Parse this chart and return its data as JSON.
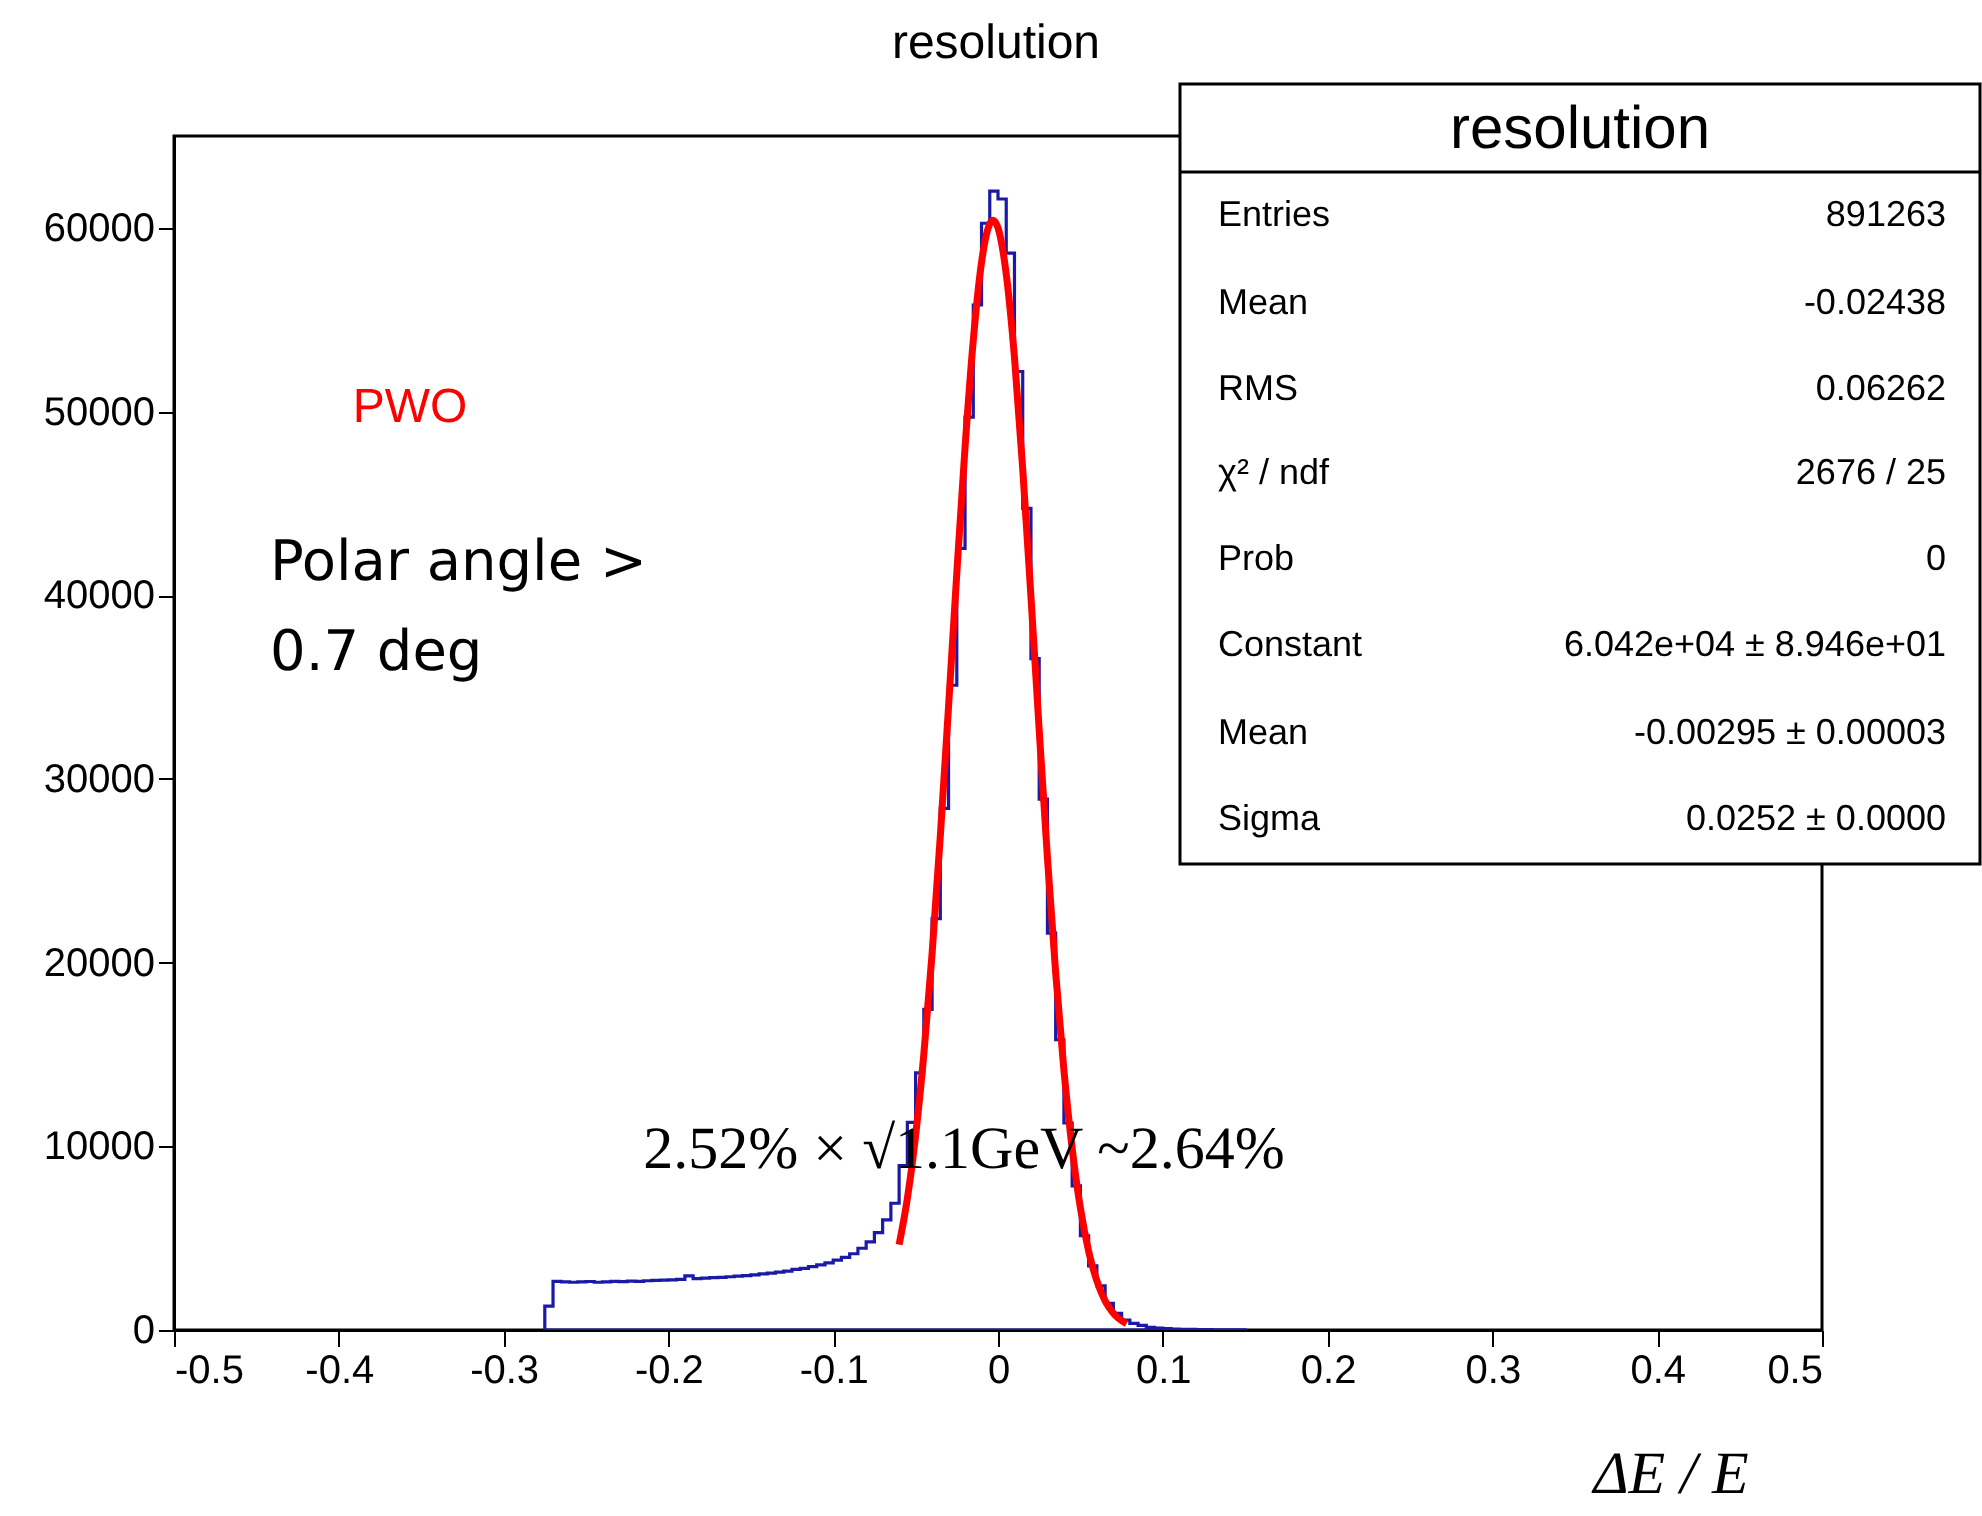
{
  "chart_data": {
    "type": "histogram",
    "title": "resolution",
    "xlabel": "ΔE / E",
    "xlim": [
      -0.5,
      0.5
    ],
    "xticks": [
      -0.5,
      -0.4,
      -0.3,
      -0.2,
      -0.1,
      0,
      0.1,
      0.2,
      0.3,
      0.4,
      0.5
    ],
    "ylim": [
      0,
      65000
    ],
    "yticks": [
      0,
      10000,
      20000,
      30000,
      40000,
      50000,
      60000
    ],
    "grid": false,
    "series": [
      {
        "type": "histogram",
        "color": "#1a1aa6",
        "bins": [
          -0.275,
          -0.27,
          -0.265,
          -0.26,
          -0.255,
          -0.25,
          -0.245,
          -0.24,
          -0.235,
          -0.23,
          -0.225,
          -0.22,
          -0.215,
          -0.21,
          -0.205,
          -0.2,
          -0.195,
          -0.19,
          -0.185,
          -0.18,
          -0.175,
          -0.17,
          -0.165,
          -0.16,
          -0.155,
          -0.15,
          -0.145,
          -0.14,
          -0.135,
          -0.13,
          -0.125,
          -0.12,
          -0.115,
          -0.11,
          -0.105,
          -0.1,
          -0.095,
          -0.09,
          -0.085,
          -0.08,
          -0.075,
          -0.07,
          -0.065,
          -0.06,
          -0.055,
          -0.05,
          -0.045,
          -0.04,
          -0.035,
          -0.03,
          -0.025,
          -0.02,
          -0.015,
          -0.01,
          -0.005,
          0,
          0.005,
          0.01,
          0.015,
          0.02,
          0.025,
          0.03,
          0.035,
          0.04,
          0.045,
          0.05,
          0.055,
          0.06,
          0.065,
          0.07,
          0.075,
          0.08,
          0.085,
          0.09,
          0.095,
          0.1,
          0.105,
          0.11,
          0.115,
          0.12,
          0.125,
          0.13,
          0.135,
          0.14,
          0.145,
          0.15
        ],
        "values": [
          1300,
          2650,
          2620,
          2600,
          2620,
          2640,
          2600,
          2620,
          2650,
          2630,
          2660,
          2650,
          2680,
          2700,
          2720,
          2730,
          2760,
          2950,
          2800,
          2820,
          2850,
          2870,
          2900,
          2930,
          2960,
          3000,
          3050,
          3100,
          3150,
          3200,
          3300,
          3350,
          3450,
          3550,
          3650,
          3800,
          3950,
          4150,
          4450,
          4800,
          5300,
          6000,
          6900,
          8950,
          11300,
          14000,
          17450,
          22400,
          28400,
          35100,
          42550,
          49700,
          55800,
          60250,
          62000,
          61570,
          58620,
          52180,
          44730,
          36550,
          28900,
          21600,
          15800,
          11270,
          7850,
          5130,
          3490,
          2400,
          1450,
          900,
          545,
          360,
          250,
          150,
          100,
          70,
          50,
          40,
          30,
          20,
          20,
          10,
          10,
          10,
          10
        ]
      },
      {
        "type": "line",
        "color": "#ff0000",
        "x": [
          -0.06,
          -0.055,
          -0.05,
          -0.045,
          -0.04,
          -0.035,
          -0.03,
          -0.025,
          -0.02,
          -0.015,
          -0.01,
          -0.005,
          -0.003,
          0,
          0.005,
          0.01,
          0.015,
          0.02,
          0.025,
          0.03,
          0.035,
          0.04,
          0.045,
          0.05,
          0.055,
          0.06,
          0.065,
          0.07,
          0.078
        ],
        "values": [
          4650,
          7160,
          10580,
          15020,
          20490,
          26900,
          33960,
          41200,
          48050,
          53880,
          58110,
          60220,
          60420,
          60000,
          57480,
          52940,
          46870,
          39900,
          32660,
          25690,
          19440,
          14140,
          9880,
          6640,
          4290,
          2670,
          1590,
          914,
          347
        ]
      }
    ],
    "annotations": [
      "PWO",
      "Polar angle >\n0.7 deg",
      "2.52% × √1.1GeV ~2.64%",
      "resolution",
      "Entries",
      "891263",
      "Mean",
      "-0.02438",
      "RMS",
      "0.06262",
      "χ² / ndf",
      "2676 / 25",
      "Prob",
      "0",
      "Constant",
      "6.042e+04 ± 8.946e+01",
      "Mean",
      "-0.00295 ± 0.00003",
      "Sigma",
      "0.0252 ± 0.0000"
    ]
  }
}
